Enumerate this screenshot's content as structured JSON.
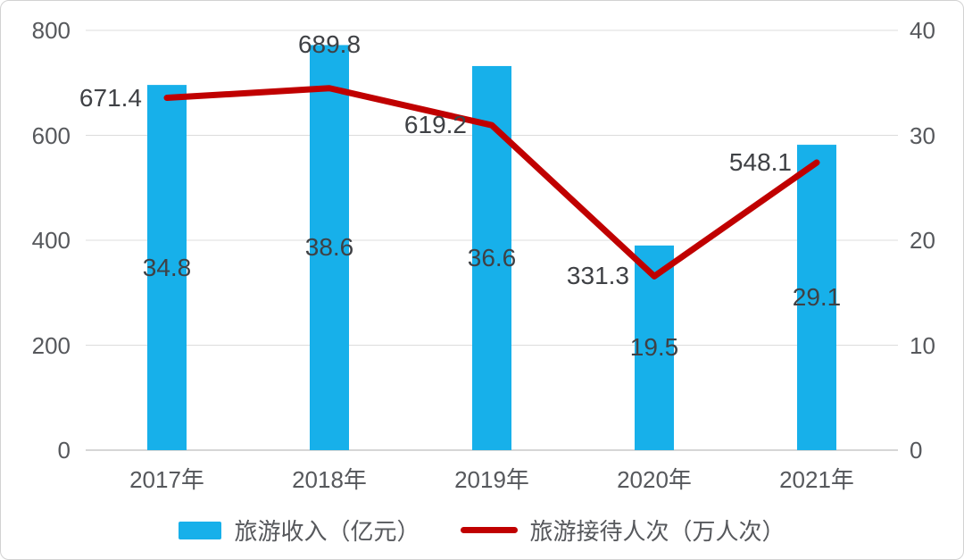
{
  "chart_data": {
    "type": "bar+line combo",
    "title": "",
    "categories": [
      "2017年",
      "2018年",
      "2019年",
      "2020年",
      "2021年"
    ],
    "series": [
      {
        "name": "旅游收入（亿元）",
        "type": "bar",
        "axis": "right",
        "values": [
          34.8,
          38.6,
          36.6,
          19.5,
          29.1
        ],
        "labels": [
          "34.8",
          "38.6",
          "36.6",
          "19.5",
          "29.1"
        ],
        "label_position": "inside-center"
      },
      {
        "name": "旅游接待人次（万人次）",
        "type": "line",
        "axis": "left",
        "values": [
          671.4,
          689.8,
          619.2,
          331.3,
          548.1
        ],
        "labels": [
          "671.4",
          "689.8",
          "619.2",
          "331.3",
          "548.1"
        ],
        "label_positions": [
          "left",
          "above",
          "left",
          "left",
          "left"
        ]
      }
    ],
    "left_axis": {
      "min": 0,
      "max": 800,
      "ticks": [
        "800",
        "600",
        "400",
        "200",
        "0"
      ]
    },
    "right_axis": {
      "min": 0,
      "max": 40,
      "ticks": [
        "40",
        "30",
        "20",
        "10",
        "0"
      ]
    },
    "grid": true,
    "legend_position": "bottom"
  },
  "legend": {
    "bar_label": "旅游收入（亿元）",
    "line_label": "旅游接待人次（万人次）"
  },
  "colors": {
    "bar": "#17b0ea",
    "line": "#c00000",
    "gridline": "#dcdcdc",
    "axis_line": "#c9c9c9",
    "tick_text": "#56585c",
    "data_label_text": "#3f4145"
  }
}
